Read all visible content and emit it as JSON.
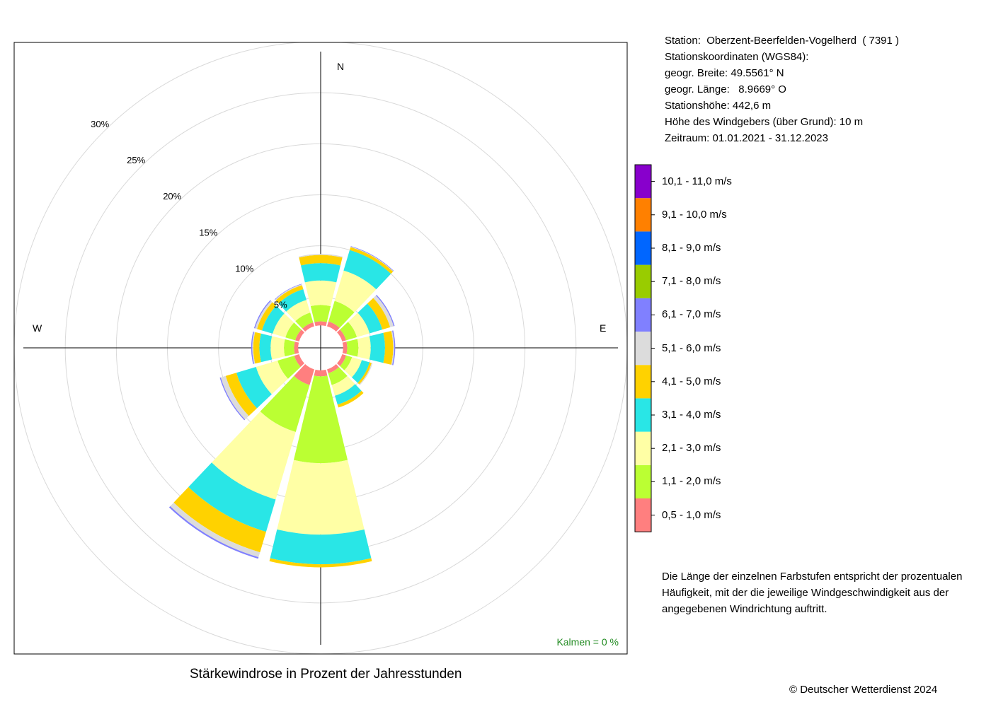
{
  "title": "Stärkewindrose in Prozent der Jahresstunden",
  "copyright": "© Deutscher Wetterdienst  2024",
  "station_info": [
    "Station:  Oberzent-Beerfelden-Vogelherd  ( 7391 )",
    "Stationskoordinaten (WGS84):",
    "geogr. Breite: 49.5561° N",
    "geogr. Länge:   8.9669° O",
    "Stationshöhe: 442,6 m",
    "Höhe des Windgebers (über Grund): 10 m",
    "Zeitraum: 01.01.2021 - 31.12.2023"
  ],
  "note": "Die Länge der einzelnen Farbstufen entspricht der prozentualen Häufigkeit, mit der die jeweilige Windgeschwindigkeit aus der angegebenen Windrichtung auftritt.",
  "calm_label": "Kalmen  =  0 %",
  "chart_data": {
    "type": "windrose",
    "directions_deg": [
      0,
      30,
      60,
      90,
      120,
      150,
      180,
      210,
      240,
      270,
      300,
      330
    ],
    "compass_labels": {
      "N": "N",
      "E": "E",
      "W": "W"
    },
    "radial_ticks": [
      5,
      10,
      15,
      20,
      25,
      30
    ],
    "radial_tick_labels": [
      "5%",
      "10%",
      "15%",
      "20%",
      "25%",
      "30%"
    ],
    "rmax": 30,
    "inner_hole_percent": 2.2,
    "speed_classes": [
      {
        "label": "0,5 - 1,0 m/s",
        "color": "#FF7F7F"
      },
      {
        "label": "1,1 - 2,0 m/s",
        "color": "#BBFF33"
      },
      {
        "label": "2,1 - 3,0 m/s",
        "color": "#FFFFA5"
      },
      {
        "label": "3,1 - 4,0 m/s",
        "color": "#29E6E6"
      },
      {
        "label": "4,1 - 5,0 m/s",
        "color": "#FFD200"
      },
      {
        "label": "5,1 - 6,0 m/s",
        "color": "#DCDCDC"
      },
      {
        "label": "6,1 - 7,0 m/s",
        "color": "#8080FF"
      },
      {
        "label": "7,1 - 8,0 m/s",
        "color": "#99CC00"
      },
      {
        "label": "8,1 - 9,0 m/s",
        "color": "#0066FF"
      },
      {
        "label": "9,1 - 10,0 m/s",
        "color": "#FF8000"
      },
      {
        "label": "10,1 - 11,0 m/s",
        "color": "#8800CC"
      }
    ],
    "series": [
      {
        "direction": 0,
        "values": [
          0.4,
          1.6,
          2.4,
          1.7,
          0.8,
          0.1,
          0.0
        ]
      },
      {
        "direction": 30,
        "values": [
          0.5,
          2.1,
          3.1,
          2.1,
          0.3,
          0.05,
          0.05
        ]
      },
      {
        "direction": 60,
        "values": [
          0.4,
          1.1,
          1.3,
          1.3,
          0.8,
          0.35,
          0.1
        ]
      },
      {
        "direction": 90,
        "values": [
          0.4,
          1.1,
          1.2,
          1.4,
          0.8,
          0.1,
          0.1
        ]
      },
      {
        "direction": 120,
        "values": [
          0.4,
          0.6,
          1.0,
          0.8,
          0.2,
          0.1,
          0.0
        ]
      },
      {
        "direction": 150,
        "values": [
          0.4,
          1.2,
          1.1,
          0.9,
          0.3,
          0.0,
          0.0
        ]
      },
      {
        "direction": 180,
        "values": [
          0.6,
          8.5,
          7.0,
          2.9,
          0.3,
          0.0,
          0.0
        ]
      },
      {
        "direction": 210,
        "values": [
          1.6,
          4.8,
          6.9,
          3.3,
          2.1,
          0.5,
          0.15
        ]
      },
      {
        "direction": 240,
        "values": [
          0.5,
          1.7,
          2.2,
          2.0,
          1.1,
          0.5,
          0.1
        ]
      },
      {
        "direction": 270,
        "values": [
          0.4,
          1.0,
          1.3,
          1.1,
          0.6,
          0.1,
          0.1
        ]
      },
      {
        "direction": 300,
        "values": [
          0.4,
          1.0,
          1.3,
          1.1,
          0.5,
          0.2,
          0.1
        ]
      },
      {
        "direction": 330,
        "values": [
          0.4,
          1.0,
          1.3,
          1.1,
          0.4,
          0.1,
          0.05
        ]
      }
    ]
  }
}
